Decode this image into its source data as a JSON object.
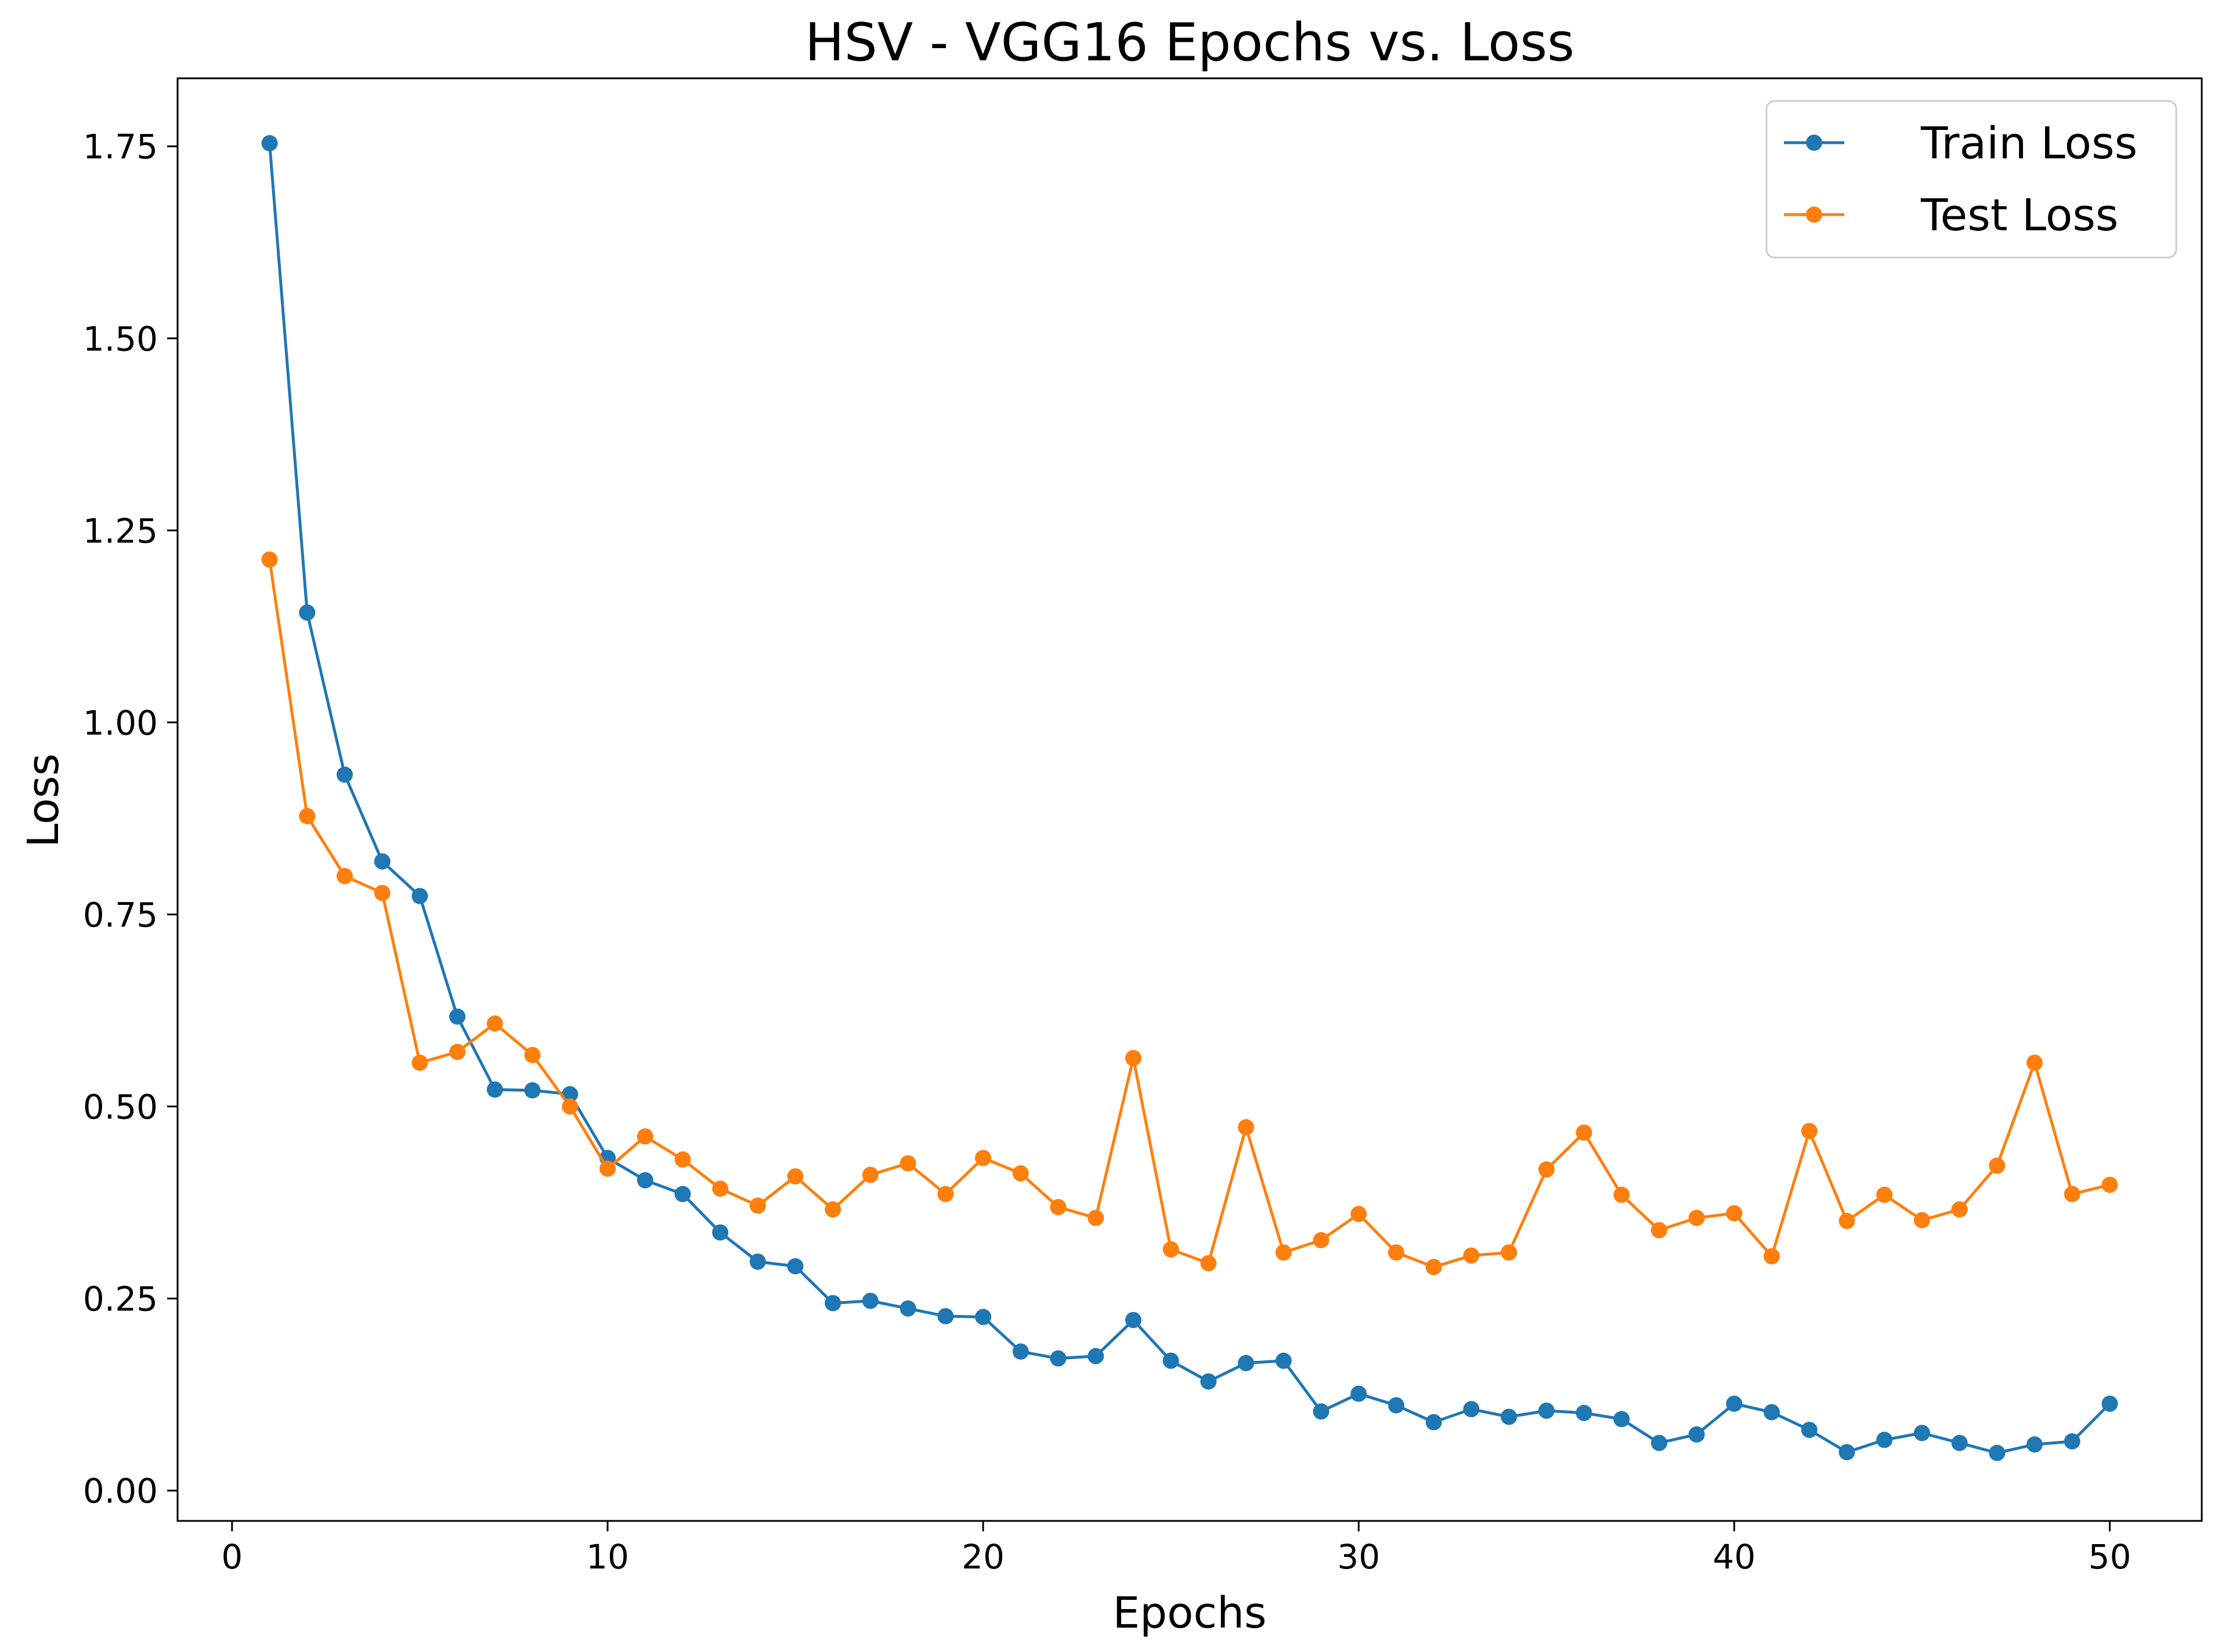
{
  "chart_data": {
    "type": "line",
    "title": "HSV - VGG16 Epochs vs. Loss",
    "xlabel": "Epochs",
    "ylabel": "Loss",
    "xlim": [
      -1.45,
      52.45
    ],
    "ylim": [
      -0.0395,
      1.8385
    ],
    "xticks": [
      0,
      10,
      20,
      30,
      40,
      50
    ],
    "xtick_labels": [
      "0",
      "10",
      "20",
      "30",
      "40",
      "50"
    ],
    "yticks": [
      0.0,
      0.25,
      0.5,
      0.75,
      1.0,
      1.25,
      1.5,
      1.75
    ],
    "ytick_labels": [
      "0.00",
      "0.25",
      "0.50",
      "0.75",
      "1.00",
      "1.25",
      "1.50",
      "1.75"
    ],
    "grid": false,
    "legend_position": "top-right",
    "x": [
      1,
      2,
      3,
      4,
      5,
      6,
      7,
      8,
      9,
      10,
      11,
      12,
      13,
      14,
      15,
      16,
      17,
      18,
      19,
      20,
      21,
      22,
      23,
      24,
      25,
      26,
      27,
      28,
      29,
      30,
      31,
      32,
      33,
      34,
      35,
      36,
      37,
      38,
      39,
      40,
      41,
      42,
      43,
      44,
      45,
      46,
      47,
      48,
      49,
      50
    ],
    "series": [
      {
        "name": "Train Loss",
        "color": "#1f77b4",
        "values": [
          1.754,
          1.143,
          0.932,
          0.819,
          0.774,
          0.617,
          0.522,
          0.521,
          0.516,
          0.433,
          0.404,
          0.386,
          0.336,
          0.298,
          0.292,
          0.244,
          0.247,
          0.237,
          0.227,
          0.226,
          0.181,
          0.172,
          0.175,
          0.222,
          0.169,
          0.142,
          0.166,
          0.169,
          0.103,
          0.126,
          0.111,
          0.089,
          0.106,
          0.096,
          0.104,
          0.101,
          0.093,
          0.062,
          0.073,
          0.113,
          0.102,
          0.079,
          0.05,
          0.066,
          0.075,
          0.062,
          0.049,
          0.06,
          0.064,
          0.113
        ]
      },
      {
        "name": "Test Loss",
        "color": "#ff7f0e",
        "values": [
          1.212,
          0.878,
          0.8,
          0.778,
          0.557,
          0.571,
          0.608,
          0.567,
          0.5,
          0.419,
          0.461,
          0.431,
          0.393,
          0.371,
          0.409,
          0.366,
          0.411,
          0.426,
          0.386,
          0.433,
          0.413,
          0.369,
          0.355,
          0.563,
          0.314,
          0.296,
          0.473,
          0.31,
          0.326,
          0.36,
          0.31,
          0.291,
          0.306,
          0.31,
          0.418,
          0.466,
          0.385,
          0.339,
          0.355,
          0.361,
          0.305,
          0.468,
          0.351,
          0.385,
          0.352,
          0.366,
          0.423,
          0.557,
          0.386,
          0.398
        ]
      }
    ]
  }
}
